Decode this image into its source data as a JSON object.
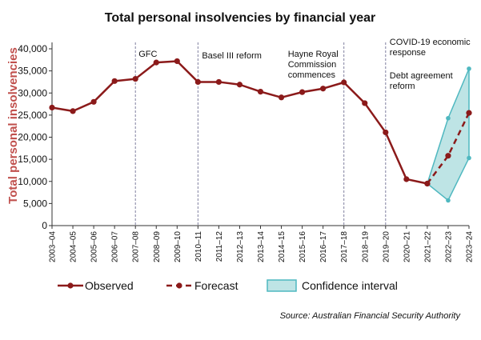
{
  "chart_data": {
    "type": "line",
    "title": "Total personal insolvencies by financial year",
    "ylabel": "Total personal insolvencies",
    "xlabel": "",
    "ylim": [
      0,
      40000
    ],
    "yticks": [
      0,
      5000,
      10000,
      15000,
      20000,
      25000,
      30000,
      35000,
      40000
    ],
    "ytick_labels": [
      "0",
      "5,000",
      "10,000",
      "15,000",
      "20,000",
      "25,000",
      "30,000",
      "35,000",
      "40,000"
    ],
    "categories": [
      "2003–04",
      "2004–05",
      "2005–06",
      "2006–07",
      "2007–08",
      "2008–09",
      "2009–10",
      "2010–11",
      "2011–12",
      "2012–13",
      "2013–14",
      "2014–15",
      "2015–16",
      "2016–17",
      "2017–18",
      "2018–19",
      "2019–20",
      "2020–21",
      "2021–22",
      "2022–23",
      "2023–24"
    ],
    "series": [
      {
        "name": "Observed",
        "style": "solid",
        "x": [
          "2003–04",
          "2004–05",
          "2005–06",
          "2006–07",
          "2007–08",
          "2008–09",
          "2009–10",
          "2010–11",
          "2011–12",
          "2012–13",
          "2013–14",
          "2014–15",
          "2015–16",
          "2016–17",
          "2017–18",
          "2018–19",
          "2019–20",
          "2020–21",
          "2021–22"
        ],
        "values": [
          26700,
          25900,
          28000,
          32700,
          33200,
          36900,
          37200,
          32500,
          32500,
          31900,
          30300,
          29000,
          30200,
          31000,
          32400,
          27700,
          21100,
          10500,
          9500
        ]
      },
      {
        "name": "Forecast",
        "style": "dashed",
        "x": [
          "2021–22",
          "2022–23",
          "2023–24"
        ],
        "values": [
          9500,
          15800,
          25500
        ]
      }
    ],
    "confidence_interval": {
      "name": "Confidence interval",
      "x": [
        "2021–22",
        "2022–23",
        "2023–24"
      ],
      "lower": [
        9500,
        5700,
        15300
      ],
      "upper": [
        9500,
        24300,
        35500
      ]
    },
    "annotations": [
      {
        "x": "2007–08",
        "lines": [
          "GFC"
        ]
      },
      {
        "x": "2010–11",
        "lines": [
          "Basel III reform"
        ]
      },
      {
        "x": "2017–18",
        "lines": [
          "Hayne Royal",
          "Commission",
          "commences"
        ]
      },
      {
        "x": "2019–20",
        "lines": [
          "COVID-19 economic",
          " response"
        ]
      },
      {
        "x": "2019–20",
        "lines": [
          "Debt agreement",
          "reform"
        ]
      }
    ],
    "legend": {
      "placement": "bottom",
      "items": [
        "Observed",
        "Forecast",
        "Confidence interval"
      ]
    },
    "source": "Source: Australian Financial Security Authority",
    "grid": false,
    "colors": {
      "line": "#8b1a1a",
      "ylabel": "#c0504d",
      "ci_fill": "#a8dbdc",
      "ci_edge": "#4fb8c0",
      "vline": "#7f7fa0",
      "axis": "#333333"
    }
  }
}
